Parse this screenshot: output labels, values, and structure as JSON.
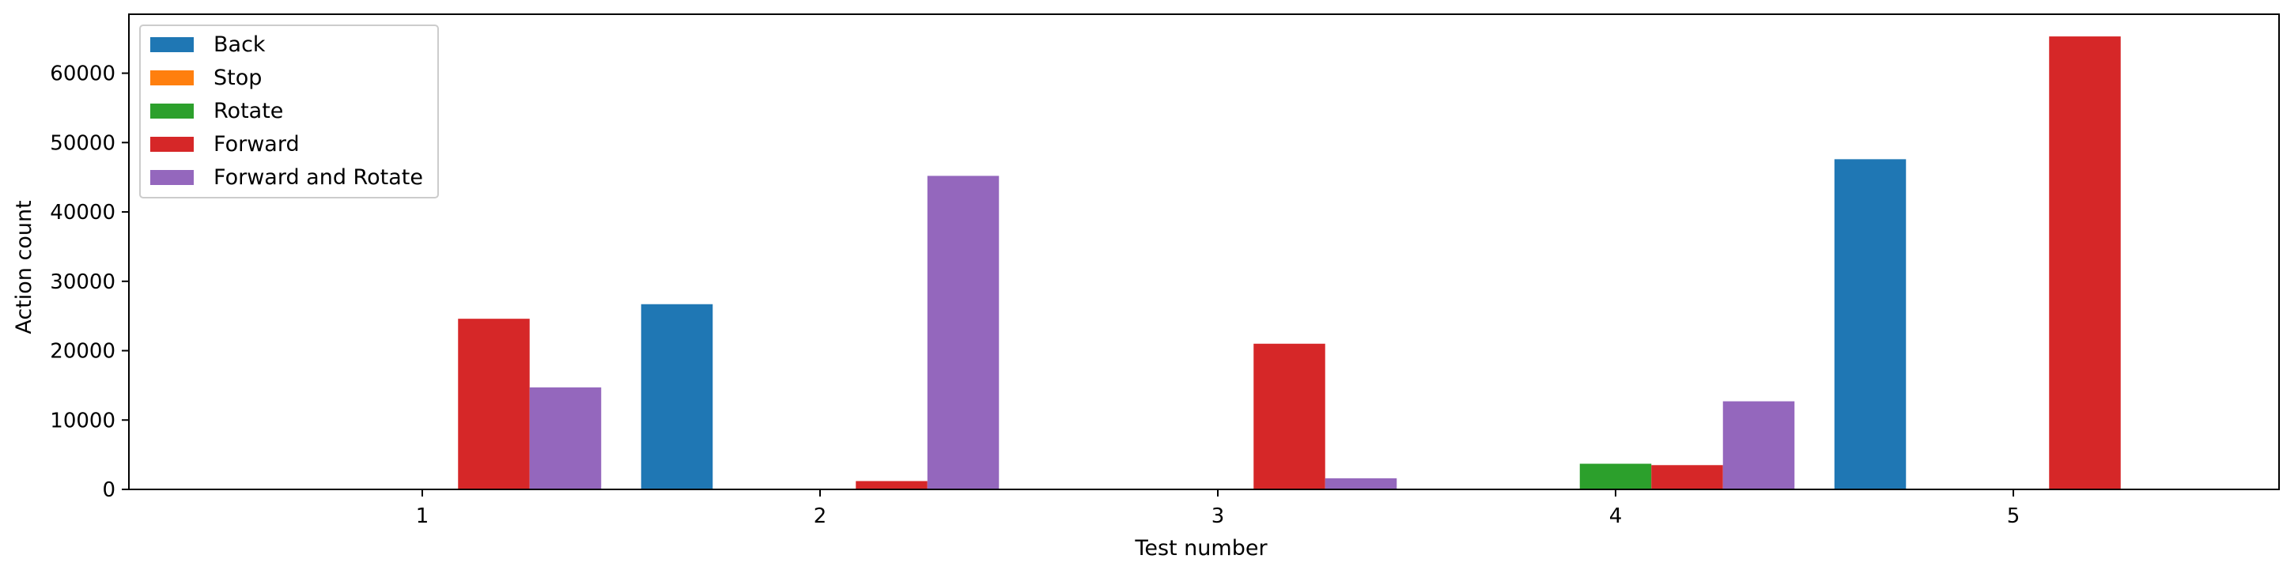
{
  "chart_data": {
    "type": "bar",
    "title": "",
    "xlabel": "Test number",
    "ylabel": "Action count",
    "categories": [
      "1",
      "2",
      "3",
      "4",
      "5"
    ],
    "ylim": [
      0,
      68500
    ],
    "yticks": [
      0,
      10000,
      20000,
      30000,
      40000,
      50000,
      60000
    ],
    "ytick_labels": [
      "0",
      "10000",
      "20000",
      "30000",
      "40000",
      "50000",
      "60000"
    ],
    "grid": false,
    "legend_position": "top-left",
    "series": [
      {
        "name": "Back",
        "color": "#1f77b4",
        "values": [
          0,
          26700,
          0,
          0,
          47600
        ]
      },
      {
        "name": "Stop",
        "color": "#ff7f0e",
        "values": [
          0,
          0,
          0,
          0,
          0
        ]
      },
      {
        "name": "Rotate",
        "color": "#2ca02c",
        "values": [
          0,
          0,
          0,
          3700,
          0
        ]
      },
      {
        "name": "Forward",
        "color": "#d62728",
        "values": [
          24600,
          1200,
          21000,
          3500,
          65300
        ]
      },
      {
        "name": "Forward and Rotate",
        "color": "#9467bd",
        "values": [
          14700,
          45200,
          1600,
          12700,
          0
        ]
      }
    ]
  }
}
